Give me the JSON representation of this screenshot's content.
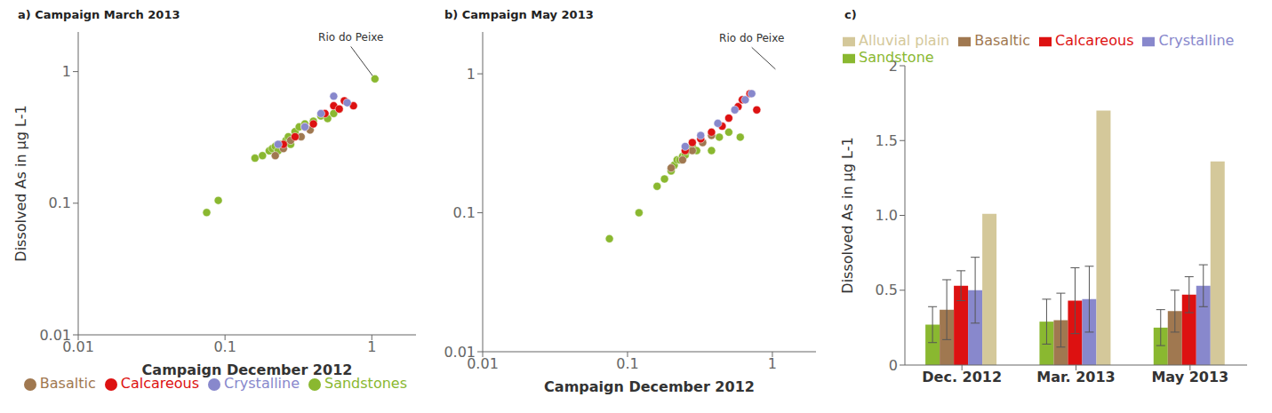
{
  "chart_data": [
    {
      "type": "scatter",
      "title": "a) Campaign March 2013",
      "x_label": "Campaign December 2012",
      "y_label": "Dissolved As in µg L-1",
      "log": true,
      "xlim": [
        0.01,
        2
      ],
      "ylim": [
        0.01,
        2
      ],
      "xticks": [
        0.01,
        0.1,
        1
      ],
      "yticks": [
        0.01,
        0.1,
        1
      ],
      "grid": false,
      "legend": "lower right",
      "series": [
        {
          "name": "Sandstones",
          "color": "#8ab830",
          "x": [
            0.075,
            0.09,
            0.16,
            0.18,
            0.2,
            0.21,
            0.22,
            0.23,
            0.24,
            0.25,
            0.26,
            0.27,
            0.28,
            0.3,
            0.32,
            0.35,
            0.4,
            0.45,
            0.5,
            0.55,
            0.6,
            1.05
          ],
          "y": [
            0.085,
            0.105,
            0.22,
            0.23,
            0.25,
            0.26,
            0.27,
            0.25,
            0.28,
            0.28,
            0.3,
            0.32,
            0.28,
            0.35,
            0.38,
            0.4,
            0.42,
            0.46,
            0.44,
            0.48,
            0.52,
            0.88
          ]
        },
        {
          "name": "Basaltic",
          "color": "#a07850",
          "x": [
            0.22,
            0.25,
            0.28,
            0.33,
            0.38
          ],
          "y": [
            0.23,
            0.26,
            0.3,
            0.32,
            0.36
          ]
        },
        {
          "name": "Calcareous",
          "color": "#dd1111",
          "x": [
            0.25,
            0.3,
            0.35,
            0.4,
            0.48,
            0.55,
            0.6,
            0.65,
            0.75
          ],
          "y": [
            0.28,
            0.32,
            0.38,
            0.4,
            0.48,
            0.55,
            0.52,
            0.6,
            0.55
          ]
        },
        {
          "name": "Crystalline",
          "color": "#8888cc",
          "x": [
            0.23,
            0.35,
            0.45,
            0.55,
            0.68
          ],
          "y": [
            0.28,
            0.38,
            0.48,
            0.65,
            0.58
          ]
        }
      ],
      "annotations": [
        {
          "text": "Rio do Peixe",
          "x": 1.05,
          "y": 0.88,
          "text_x": 0.72,
          "text_y": 1.55
        }
      ]
    },
    {
      "type": "scatter",
      "title": "b) Campaign May 2013",
      "x_label": "Campaign December 2012",
      "log": true,
      "xlim": [
        0.01,
        2
      ],
      "ylim": [
        0.01,
        2
      ],
      "xticks": [
        0.01,
        0.1,
        1
      ],
      "yticks": [
        0.01,
        0.1,
        1
      ],
      "grid": false,
      "series": [
        {
          "color": "#8ab830",
          "x": [
            0.075,
            0.12,
            0.16,
            0.18,
            0.2,
            0.21,
            0.22,
            0.23,
            0.24,
            0.25,
            0.26,
            0.28,
            0.3,
            0.33,
            0.38,
            0.43,
            0.5,
            0.6
          ],
          "y": [
            0.065,
            0.1,
            0.155,
            0.175,
            0.2,
            0.22,
            0.24,
            0.24,
            0.255,
            0.26,
            0.28,
            0.3,
            0.28,
            0.32,
            0.28,
            0.35,
            0.38,
            0.35
          ]
        },
        {
          "color": "#a07850",
          "x": [
            0.2,
            0.24,
            0.28,
            0.33,
            0.38
          ],
          "y": [
            0.21,
            0.24,
            0.28,
            0.32,
            0.36
          ]
        },
        {
          "color": "#dd1111",
          "x": [
            0.25,
            0.28,
            0.32,
            0.38,
            0.45,
            0.5,
            0.58,
            0.62,
            0.7,
            0.78
          ],
          "y": [
            0.28,
            0.32,
            0.34,
            0.38,
            0.42,
            0.48,
            0.58,
            0.65,
            0.72,
            0.55
          ]
        },
        {
          "color": "#8888cc",
          "x": [
            0.25,
            0.32,
            0.42,
            0.55,
            0.65,
            0.72
          ],
          "y": [
            0.3,
            0.36,
            0.44,
            0.55,
            0.65,
            0.72
          ]
        }
      ],
      "annotations": [
        {
          "text": "Rio do Peixe",
          "x": 1.05,
          "y": 1.08,
          "text_x": 0.72,
          "text_y": 1.55
        }
      ]
    },
    {
      "type": "bar",
      "title": "c)",
      "y_label": "Dissolved As in µg L-1",
      "categories": [
        "Dec. 2012",
        "Mar. 2013",
        "May 2013"
      ],
      "ylim": [
        0,
        2.0
      ],
      "yticks": [
        0,
        0.5,
        {
          "value": 1.0,
          "label": "1.0"
        },
        1.5,
        2
      ],
      "grid": false,
      "legend": "upper left",
      "series": [
        {
          "name": "Sandstone",
          "color": "#8ab830",
          "values": [
            0.27,
            0.29,
            0.25
          ],
          "errors": [
            0.12,
            0.15,
            0.12
          ]
        },
        {
          "name": "Basaltic",
          "color": "#a07850",
          "values": [
            0.37,
            0.3,
            0.36
          ],
          "errors": [
            0.2,
            0.18,
            0.14
          ]
        },
        {
          "name": "Calcareous",
          "color": "#dd1111",
          "values": [
            0.53,
            0.43,
            0.47
          ],
          "errors": [
            0.1,
            0.22,
            0.12
          ]
        },
        {
          "name": "Crystalline",
          "color": "#8888cc",
          "values": [
            0.5,
            0.44,
            0.53
          ],
          "errors": [
            0.22,
            0.22,
            0.14
          ]
        },
        {
          "name": "Alluvial plain",
          "color": "#d4c89a",
          "values": [
            1.01,
            1.7,
            1.36
          ],
          "errors": [
            0.0,
            0.0,
            0.0
          ]
        }
      ]
    }
  ]
}
